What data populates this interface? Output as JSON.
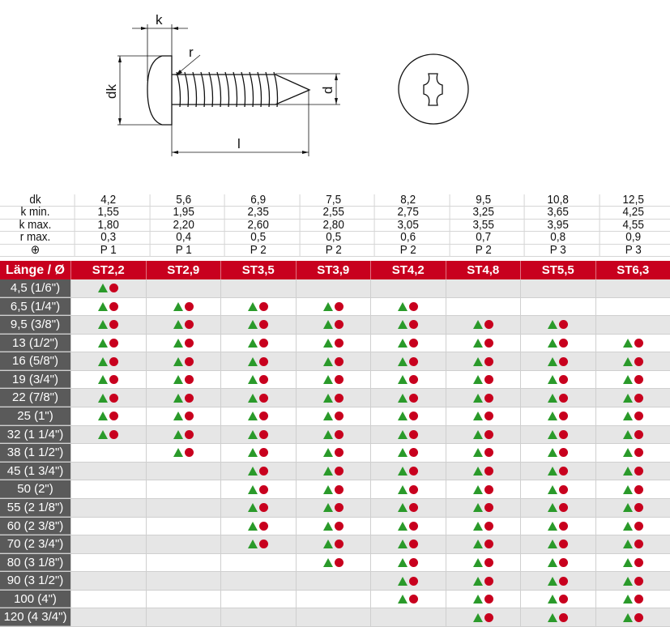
{
  "drawing": {
    "labels": {
      "k": "k",
      "r": "r",
      "dk": "dk",
      "d": "d",
      "l": "l"
    }
  },
  "spec_rows": [
    {
      "label": "dk",
      "values": [
        "4,2",
        "5,6",
        "6,9",
        "7,5",
        "8,2",
        "9,5",
        "10,8",
        "12,5"
      ]
    },
    {
      "label": "k min.",
      "values": [
        "1,55",
        "1,95",
        "2,35",
        "2,55",
        "2,75",
        "3,25",
        "3,65",
        "4,25"
      ]
    },
    {
      "label": "k max.",
      "values": [
        "1,80",
        "2,20",
        "2,60",
        "2,80",
        "3,05",
        "3,55",
        "3,95",
        "4,55"
      ]
    },
    {
      "label": "r max.",
      "values": [
        "0,3",
        "0,4",
        "0,5",
        "0,5",
        "0,6",
        "0,7",
        "0,8",
        "0,9"
      ]
    },
    {
      "label": "⊕",
      "values": [
        "P 1",
        "P 1",
        "P 2",
        "P 2",
        "P 2",
        "P 2",
        "P 3",
        "P 3"
      ]
    }
  ],
  "header": {
    "label": "Länge / Ø",
    "sizes": [
      "ST2,2",
      "ST2,9",
      "ST3,5",
      "ST3,9",
      "ST4,2",
      "ST4,8",
      "ST5,5",
      "ST6,3"
    ]
  },
  "colors": {
    "header": "#c8001e",
    "triangle": "#2a9a2a",
    "circle": "#c8001e",
    "row_label_bg": "#5a5a5a"
  },
  "rows": [
    {
      "length": "4,5 (1/6\")",
      "avail": [
        1,
        0,
        0,
        0,
        0,
        0,
        0,
        0
      ]
    },
    {
      "length": "6,5 (1/4\")",
      "avail": [
        1,
        1,
        1,
        1,
        1,
        0,
        0,
        0
      ]
    },
    {
      "length": "9,5 (3/8\")",
      "avail": [
        1,
        1,
        1,
        1,
        1,
        1,
        1,
        0
      ]
    },
    {
      "length": "13 (1/2\")",
      "avail": [
        1,
        1,
        1,
        1,
        1,
        1,
        1,
        1
      ]
    },
    {
      "length": "16 (5/8\")",
      "avail": [
        1,
        1,
        1,
        1,
        1,
        1,
        1,
        1
      ]
    },
    {
      "length": "19 (3/4\")",
      "avail": [
        1,
        1,
        1,
        1,
        1,
        1,
        1,
        1
      ]
    },
    {
      "length": "22 (7/8\")",
      "avail": [
        1,
        1,
        1,
        1,
        1,
        1,
        1,
        1
      ]
    },
    {
      "length": "25 (1\")",
      "avail": [
        1,
        1,
        1,
        1,
        1,
        1,
        1,
        1
      ]
    },
    {
      "length": "32 (1 1/4\")",
      "avail": [
        1,
        1,
        1,
        1,
        1,
        1,
        1,
        1
      ]
    },
    {
      "length": "38 (1 1/2\")",
      "avail": [
        0,
        1,
        1,
        1,
        1,
        1,
        1,
        1
      ]
    },
    {
      "length": "45 (1 3/4\")",
      "avail": [
        0,
        0,
        1,
        1,
        1,
        1,
        1,
        1
      ]
    },
    {
      "length": "50 (2\")",
      "avail": [
        0,
        0,
        1,
        1,
        1,
        1,
        1,
        1
      ]
    },
    {
      "length": "55 (2 1/8\")",
      "avail": [
        0,
        0,
        1,
        1,
        1,
        1,
        1,
        1
      ]
    },
    {
      "length": "60 (2 3/8\")",
      "avail": [
        0,
        0,
        1,
        1,
        1,
        1,
        1,
        1
      ]
    },
    {
      "length": "70 (2 3/4\")",
      "avail": [
        0,
        0,
        1,
        1,
        1,
        1,
        1,
        1
      ]
    },
    {
      "length": "80 (3 1/8\")",
      "avail": [
        0,
        0,
        0,
        1,
        1,
        1,
        1,
        1
      ]
    },
    {
      "length": "90 (3 1/2\")",
      "avail": [
        0,
        0,
        0,
        0,
        1,
        1,
        1,
        1
      ]
    },
    {
      "length": "100 (4\")",
      "avail": [
        0,
        0,
        0,
        0,
        1,
        1,
        1,
        1
      ]
    },
    {
      "length": "120 (4 3/4\")",
      "avail": [
        0,
        0,
        0,
        0,
        0,
        1,
        1,
        1
      ]
    }
  ]
}
